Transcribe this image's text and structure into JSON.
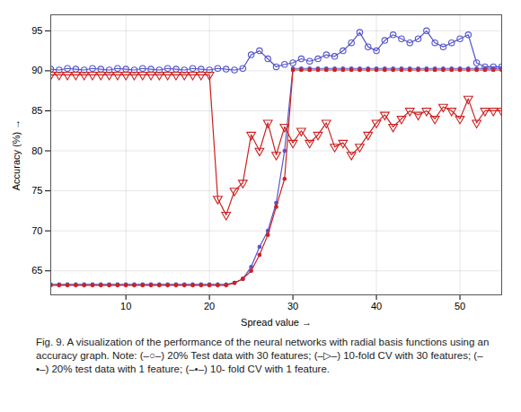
{
  "chart_data": {
    "type": "line",
    "xlabel": "Spread value",
    "ylabel": "Accuracy (%)",
    "caption": "Fig. 9. A visualization of the performance of the neural networks with radial basis functions using an accuracy graph. Note: (–○–) 20% Test data with 30 features; (–▷–) 10-fold CV with 30 features; (–•–) 20% test data with 1 feature; (–•–) 10- fold CV with 1 feature.",
    "xlim": [
      1,
      55
    ],
    "ylim": [
      62,
      97
    ],
    "xticks": [
      10,
      20,
      30,
      40,
      50
    ],
    "yticks": [
      65,
      70,
      75,
      80,
      85,
      90,
      95
    ],
    "grid": true,
    "x": [
      1,
      2,
      3,
      4,
      5,
      6,
      7,
      8,
      9,
      10,
      11,
      12,
      13,
      14,
      15,
      16,
      17,
      18,
      19,
      20,
      21,
      22,
      23,
      24,
      25,
      26,
      27,
      28,
      29,
      30,
      31,
      32,
      33,
      34,
      35,
      36,
      37,
      38,
      39,
      40,
      41,
      42,
      43,
      44,
      45,
      46,
      47,
      48,
      49,
      50,
      51,
      52,
      53,
      54,
      55
    ],
    "series": [
      {
        "color": "#5555cc",
        "marker": "dot",
        "values": [
          63.3,
          63.3,
          63.3,
          63.3,
          63.3,
          63.3,
          63.3,
          63.3,
          63.3,
          63.3,
          63.3,
          63.3,
          63.3,
          63.3,
          63.3,
          63.3,
          63.3,
          63.3,
          63.3,
          63.3,
          63.3,
          63.3,
          63.5,
          64.0,
          65.5,
          68.0,
          70.0,
          73.5,
          80.0,
          90.3,
          90.3,
          90.3,
          90.3,
          90.3,
          90.3,
          90.3,
          90.3,
          90.3,
          90.3,
          90.3,
          90.3,
          90.3,
          90.3,
          90.3,
          90.3,
          90.3,
          90.3,
          90.3,
          90.3,
          90.3,
          90.3,
          90.3,
          90.3,
          90.3,
          90.3
        ]
      },
      {
        "color": "#cc2222",
        "marker": "dot",
        "values": [
          63.2,
          63.2,
          63.2,
          63.2,
          63.2,
          63.2,
          63.2,
          63.2,
          63.2,
          63.2,
          63.2,
          63.2,
          63.2,
          63.2,
          63.2,
          63.2,
          63.2,
          63.2,
          63.2,
          63.2,
          63.2,
          63.2,
          63.5,
          64.0,
          65.0,
          67.0,
          69.5,
          73.0,
          76.5,
          90.1,
          90.1,
          90.1,
          90.1,
          90.1,
          90.1,
          90.1,
          90.1,
          90.1,
          90.1,
          90.1,
          90.1,
          90.1,
          90.1,
          90.1,
          90.1,
          90.1,
          90.1,
          90.1,
          90.1,
          90.1,
          90.1,
          90.1,
          90.1,
          90.1,
          90.1
        ]
      },
      {
        "color": "#5555cc",
        "marker": "circle",
        "values": [
          90.2,
          90.1,
          90.3,
          90.2,
          90.1,
          90.3,
          90.2,
          90.1,
          90.3,
          90.2,
          90.1,
          90.3,
          90.2,
          90.1,
          90.3,
          90.2,
          90.1,
          90.3,
          90.2,
          90.1,
          90.3,
          90.2,
          90.1,
          90.3,
          92.0,
          92.5,
          91.5,
          90.5,
          90.8,
          91.0,
          91.5,
          91.2,
          91.5,
          92.0,
          91.8,
          92.5,
          93.5,
          94.8,
          93.0,
          92.5,
          93.8,
          94.5,
          94.0,
          93.5,
          94.0,
          95.0,
          93.5,
          93.0,
          93.5,
          94.0,
          94.5,
          91.0,
          90.5,
          90.5,
          90.5
        ]
      },
      {
        "color": "#cc2222",
        "marker": "triangle-down",
        "values": [
          89.5,
          89.5,
          89.5,
          89.5,
          89.5,
          89.5,
          89.5,
          89.5,
          89.5,
          89.5,
          89.5,
          89.5,
          89.5,
          89.5,
          89.5,
          89.5,
          89.5,
          89.5,
          89.5,
          89.5,
          74.0,
          72.0,
          75.0,
          76.0,
          82.0,
          80.0,
          83.5,
          79.5,
          83.0,
          81.0,
          82.5,
          81.0,
          82.0,
          83.5,
          80.5,
          81.0,
          79.5,
          80.5,
          82.0,
          83.5,
          84.5,
          83.0,
          84.0,
          85.0,
          84.5,
          85.0,
          84.0,
          85.5,
          85.0,
          84.0,
          86.5,
          83.5,
          85.0,
          85.0,
          85.0
        ]
      }
    ]
  }
}
